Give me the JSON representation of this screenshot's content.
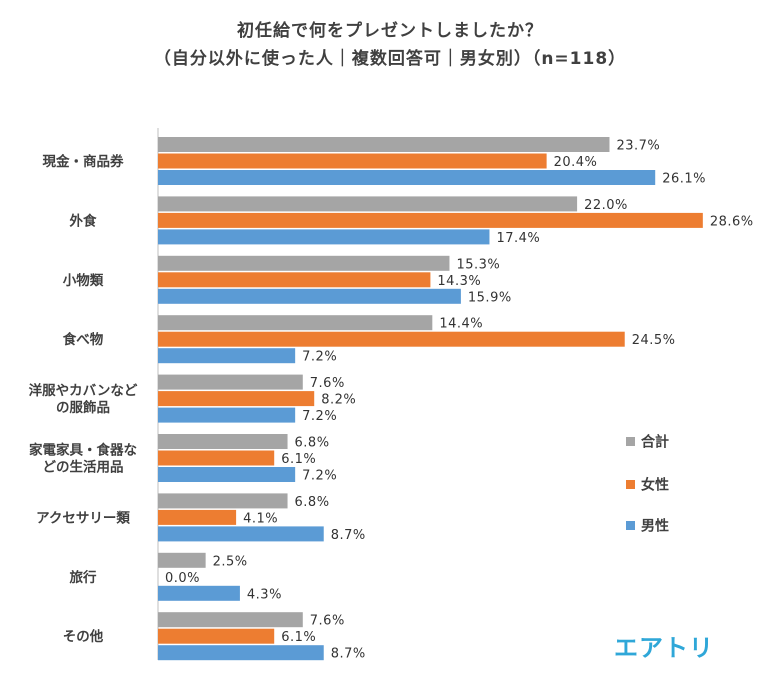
{
  "title_line1": "初任給で何をプレゼントしましたか？",
  "title_line2": "（自分以外に使った人｜複数回答可｜男女別）（n=118）",
  "logo": "エアトリ",
  "colors": {
    "total": "#a5a5a5",
    "female": "#ed7d31",
    "male": "#5b9bd5"
  },
  "legend": [
    {
      "name": "合計",
      "color_key": "total"
    },
    {
      "name": "女性",
      "color_key": "female"
    },
    {
      "name": "男性",
      "color_key": "male"
    }
  ],
  "chart_data": {
    "type": "bar",
    "orientation": "horizontal",
    "categories": [
      [
        "現金・商品券"
      ],
      [
        "外食"
      ],
      [
        "小物類"
      ],
      [
        "食べ物"
      ],
      [
        "洋服やカバンなど",
        "の服飾品"
      ],
      [
        "家電家具・食器な",
        "どの生活用品"
      ],
      [
        "アクセサリー類"
      ],
      [
        "旅行"
      ],
      [
        "その他"
      ]
    ],
    "series": [
      {
        "name": "合計",
        "values": [
          23.7,
          22.0,
          15.3,
          14.4,
          7.6,
          6.8,
          6.8,
          2.5,
          7.6
        ]
      },
      {
        "name": "女性",
        "values": [
          20.4,
          28.6,
          14.3,
          24.5,
          8.2,
          6.1,
          4.1,
          0.0,
          6.1
        ]
      },
      {
        "name": "男性",
        "values": [
          26.1,
          17.4,
          15.9,
          7.2,
          7.2,
          7.2,
          8.7,
          4.3,
          8.7
        ]
      }
    ],
    "value_suffix": "%",
    "legend_position": "right",
    "grid": false
  }
}
